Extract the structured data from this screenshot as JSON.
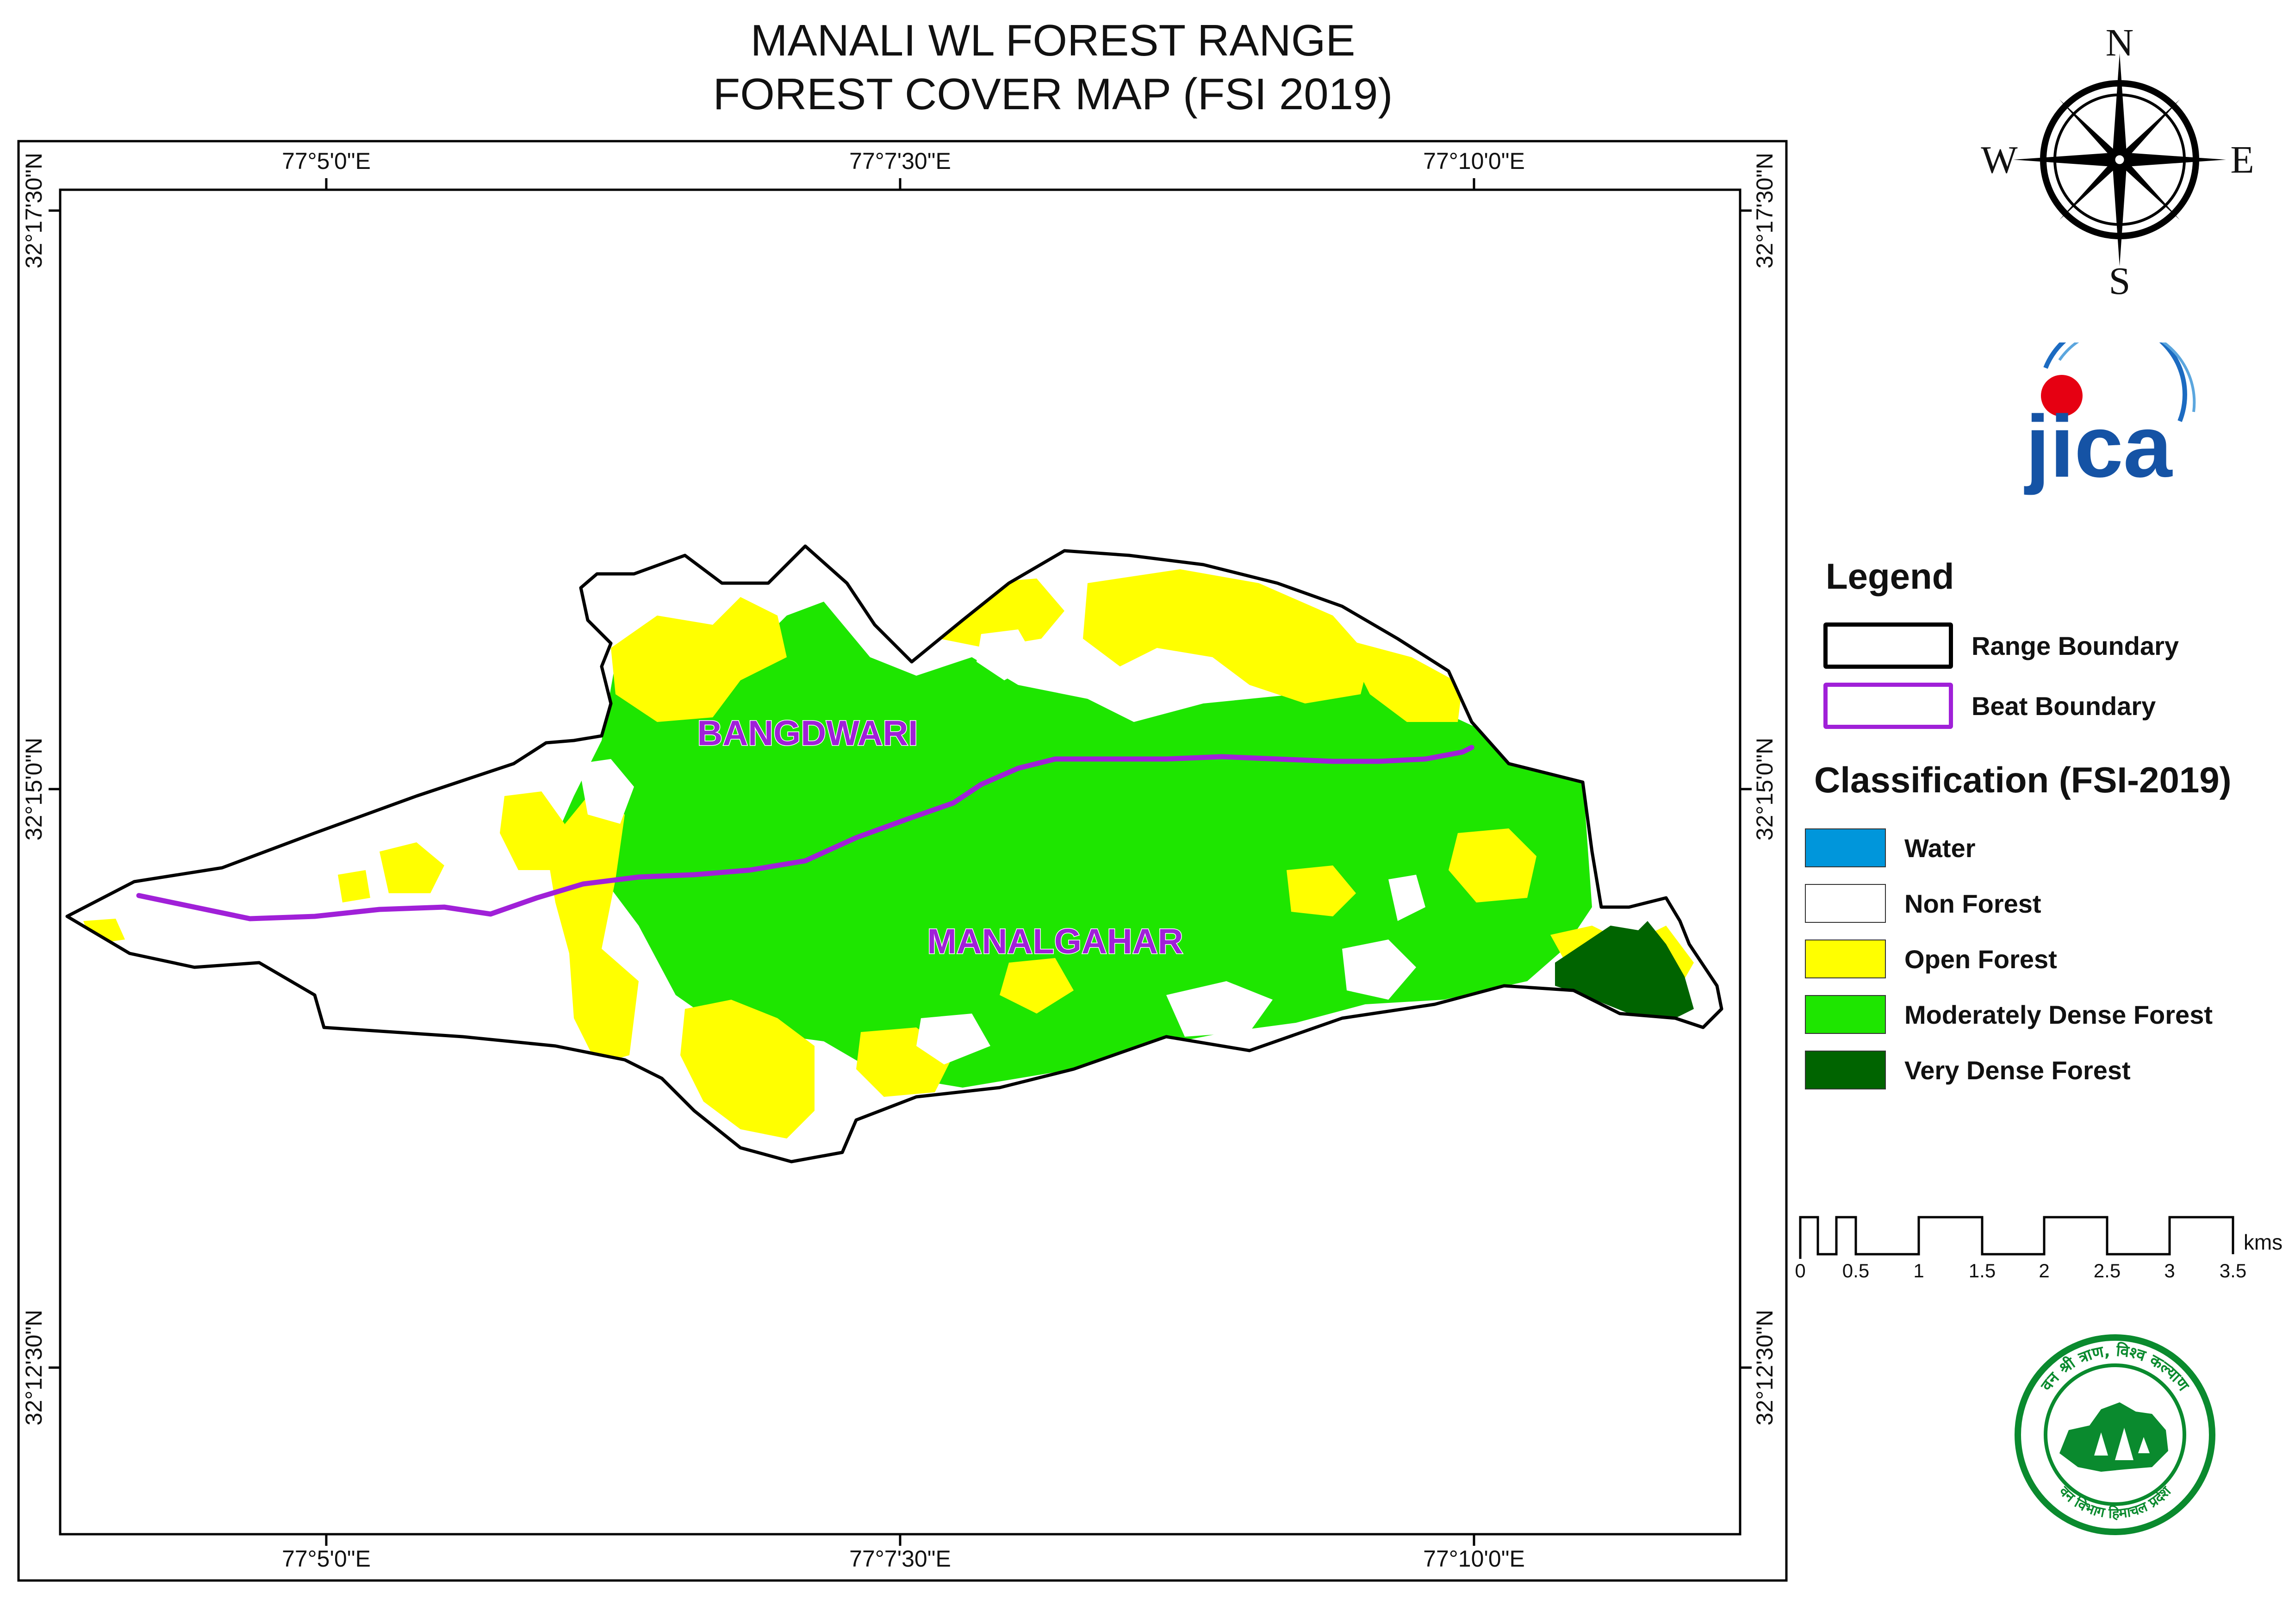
{
  "map_title": {
    "line1": "MANALI WL FOREST RANGE",
    "line2": "FOREST COVER MAP (FSI 2019)"
  },
  "graticule": {
    "top_longitudes": [
      "77°5'0\"E",
      "77°7'30\"E",
      "77°10'0\"E"
    ],
    "bottom_longitudes": [
      "77°5'0\"E",
      "77°7'30\"E",
      "77°10'0\"E"
    ],
    "left_latitudes": [
      "32°17'30\"N",
      "32°15'0\"N",
      "32°12'30\"N"
    ],
    "right_latitudes": [
      "32°17'30\"N",
      "32°15'0\"N",
      "32°12'30\"N"
    ]
  },
  "map_labels": {
    "beat_north": "BANGDWARI",
    "beat_south": "MANALGAHAR"
  },
  "north_arrow": {
    "n": "N",
    "e": "E",
    "s": "S",
    "w": "W"
  },
  "jica_logo": {
    "text": "jica"
  },
  "hp_logo": {
    "top_text": "वन श्री त्राण, विश्व कल्याण",
    "bottom_text": "वन विभाग हिमाचल प्रदेश"
  },
  "legend": {
    "heading": "Legend",
    "boundaries": [
      {
        "label": "Range Boundary",
        "color": "#000000"
      },
      {
        "label": "Beat Boundary",
        "color": "#a020d8"
      }
    ],
    "classification_heading": "Classification (FSI-2019)",
    "classes": [
      {
        "label": "Water",
        "color": "#0096db"
      },
      {
        "label": "Non Forest",
        "color": "#ffffff"
      },
      {
        "label": "Open Forest",
        "color": "#ffff00"
      },
      {
        "label": "Moderately Dense Forest",
        "color": "#1ee600"
      },
      {
        "label": "Very Dense Forest",
        "color": "#006400"
      }
    ]
  },
  "scale_bar": {
    "unit": "kms",
    "ticks": [
      "0",
      "0.25",
      "0.5",
      "1",
      "1.5",
      "2",
      "2.5",
      "3",
      "3.5"
    ]
  }
}
